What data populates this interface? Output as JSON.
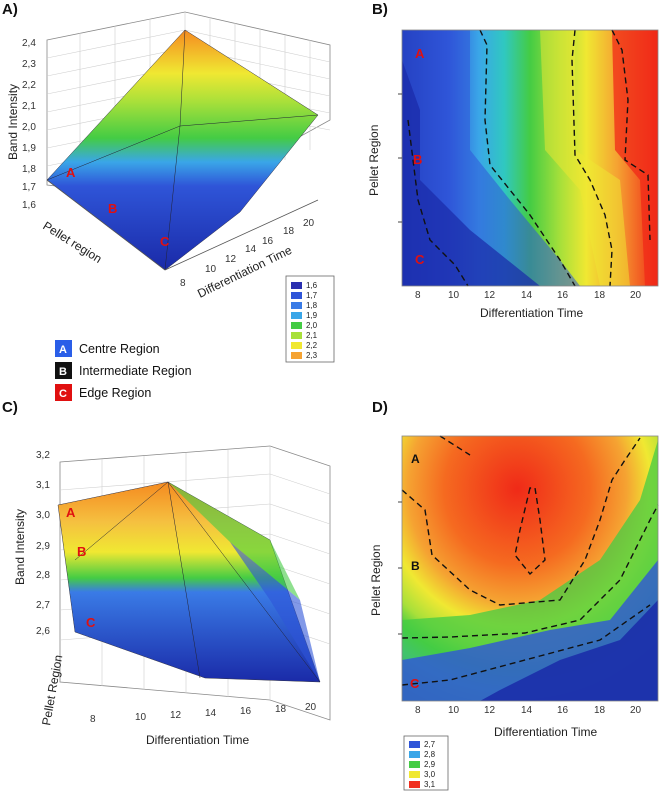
{
  "chart_data": [
    {
      "panel": "A)",
      "type": "surface3d",
      "zlabel": "Band Intensity",
      "xlabel": "Differentiation Time",
      "ylabel": "Pellet region",
      "z_ticks": [
        "1,6",
        "1,7",
        "1,8",
        "1,9",
        "2,0",
        "2,1",
        "2,2",
        "2,3",
        "2,4"
      ],
      "x_ticks": [
        "8",
        "10",
        "12",
        "14",
        "16",
        "18",
        "20"
      ],
      "region_labels": [
        "A",
        "B",
        "C"
      ],
      "legend": [
        {
          "label": "1,6",
          "color": "#2a2fb0"
        },
        {
          "label": "1,7",
          "color": "#2f55d8"
        },
        {
          "label": "1,8",
          "color": "#3a7be6"
        },
        {
          "label": "1,9",
          "color": "#3aa6e8"
        },
        {
          "label": "2,0",
          "color": "#44cc44"
        },
        {
          "label": "2,1",
          "color": "#a8e03a"
        },
        {
          "label": "2,2",
          "color": "#f0e832"
        },
        {
          "label": "2,3",
          "color": "#f5a332"
        }
      ]
    },
    {
      "panel": "B)",
      "type": "contour",
      "xlabel": "Differentiation Time",
      "ylabel": "Pellet Region",
      "x_ticks": [
        "8",
        "10",
        "12",
        "14",
        "16",
        "18",
        "20"
      ],
      "region_labels": [
        "A",
        "B",
        "C"
      ],
      "x_range": [
        7,
        21
      ]
    },
    {
      "panel": "C)",
      "type": "surface3d",
      "zlabel": "Band Intensity",
      "xlabel": "Differentiation Time",
      "ylabel": "Pellet Region",
      "z_ticks": [
        "2,6",
        "2,7",
        "2,8",
        "2,9",
        "3,0",
        "3,1",
        "3,2"
      ],
      "x_ticks": [
        "8",
        "10",
        "12",
        "14",
        "16",
        "18",
        "20"
      ],
      "region_labels": [
        "A",
        "B",
        "C"
      ]
    },
    {
      "panel": "D)",
      "type": "contour",
      "xlabel": "Differentiation Time",
      "ylabel": "Pellet Region",
      "x_ticks": [
        "8",
        "10",
        "12",
        "14",
        "16",
        "18",
        "20"
      ],
      "region_labels": [
        "A",
        "B",
        "C"
      ],
      "x_range": [
        7,
        21
      ],
      "legend": [
        {
          "label": "2,7",
          "color": "#2f55d8"
        },
        {
          "label": "2,8",
          "color": "#3aa6e8"
        },
        {
          "label": "2,9",
          "color": "#44cc44"
        },
        {
          "label": "3,0",
          "color": "#f0e832"
        },
        {
          "label": "3,1",
          "color": "#f03020"
        }
      ]
    }
  ],
  "key": [
    {
      "letter": "A",
      "label": "Centre Region",
      "color": "#2a5ee8"
    },
    {
      "letter": "B",
      "label": "Intermediate Region",
      "color": "#111111"
    },
    {
      "letter": "C",
      "label": "Edge Region",
      "color": "#e01010"
    }
  ]
}
